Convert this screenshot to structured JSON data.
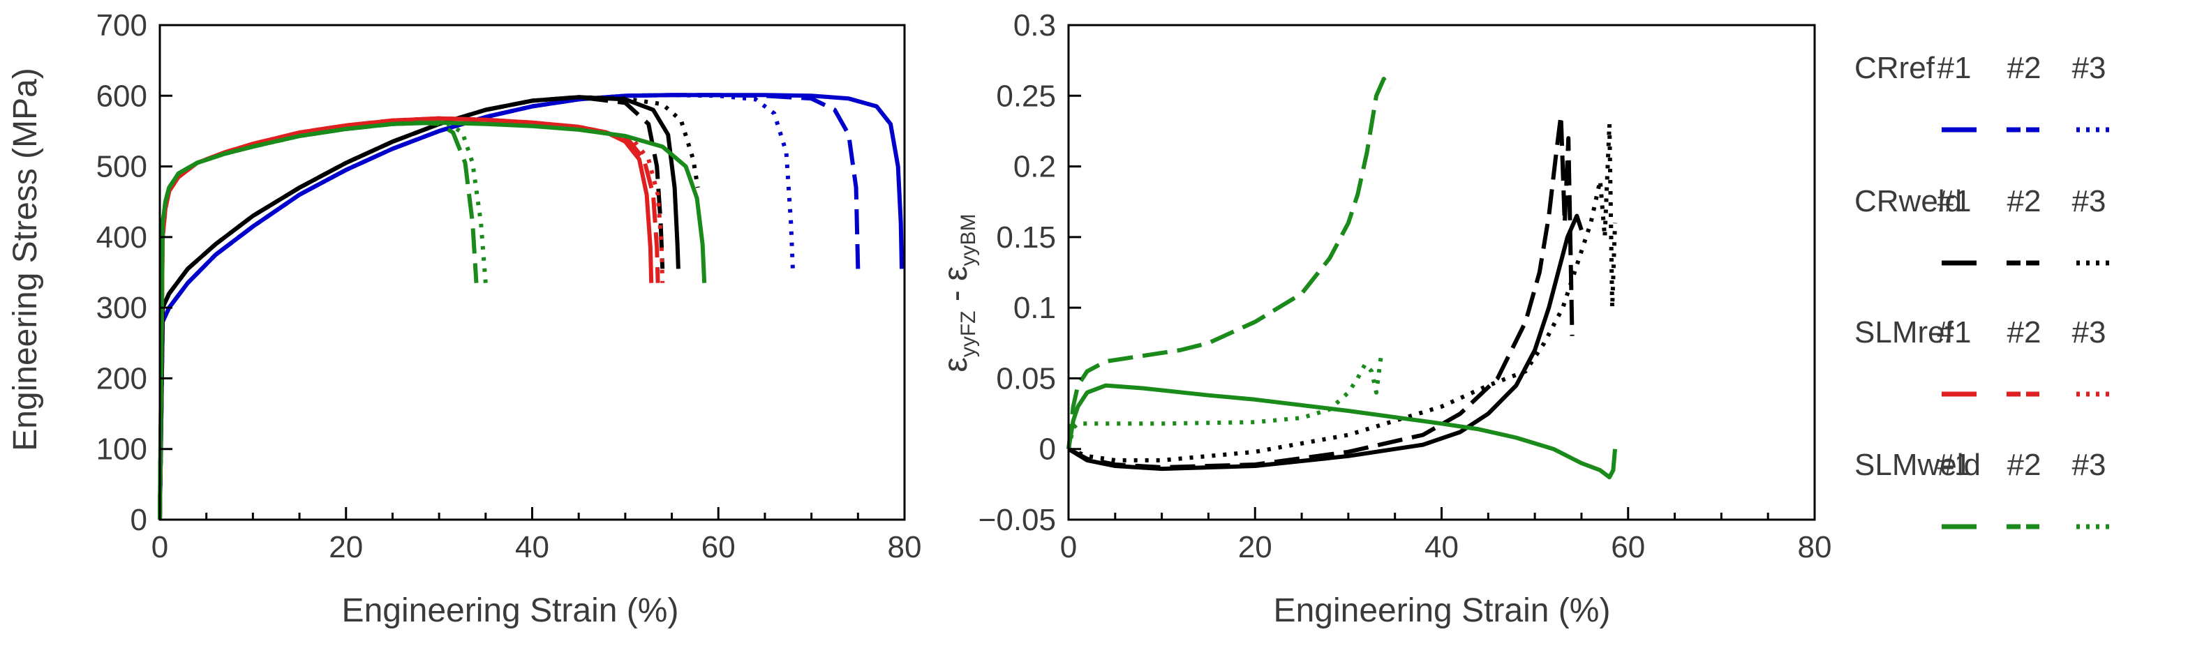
{
  "chart_data": [
    {
      "type": "line",
      "title": "",
      "xlabel": "Engineering Strain (%)",
      "ylabel": "Engineering Stress (MPa)",
      "xlim": [
        0,
        80
      ],
      "ylim": [
        0,
        700
      ],
      "xticks": [
        0,
        20,
        40,
        60,
        80
      ],
      "yticks": [
        0,
        100,
        200,
        300,
        400,
        500,
        600,
        700
      ],
      "grid": false,
      "series": [
        {
          "name": "CRref #1",
          "color": "#0000cc",
          "dash": "solid",
          "x": [
            0,
            0.3,
            1,
            3,
            6,
            10,
            15,
            20,
            25,
            30,
            35,
            40,
            45,
            50,
            55,
            60,
            65,
            70,
            74,
            77,
            78.5,
            79.3,
            79.6,
            79.7
          ],
          "y": [
            0,
            280,
            300,
            335,
            375,
            415,
            460,
            495,
            525,
            550,
            570,
            585,
            595,
            600,
            601,
            601,
            601,
            600,
            596,
            585,
            560,
            500,
            420,
            355
          ]
        },
        {
          "name": "CRref #2",
          "color": "#0000cc",
          "dash": "dash",
          "x": [
            0,
            0.3,
            1,
            3,
            6,
            10,
            15,
            20,
            25,
            30,
            35,
            40,
            45,
            50,
            55,
            60,
            65,
            70,
            72.5,
            74,
            74.8,
            75
          ],
          "y": [
            0,
            280,
            300,
            335,
            375,
            415,
            460,
            495,
            525,
            550,
            570,
            585,
            595,
            600,
            601,
            601,
            600,
            596,
            580,
            545,
            470,
            355
          ]
        },
        {
          "name": "CRref #3",
          "color": "#0000cc",
          "dash": "dot",
          "x": [
            0,
            0.3,
            1,
            3,
            6,
            10,
            15,
            20,
            25,
            30,
            35,
            40,
            45,
            50,
            55,
            60,
            64,
            66,
            67.3,
            67.8,
            68
          ],
          "y": [
            0,
            280,
            300,
            335,
            375,
            415,
            460,
            495,
            525,
            550,
            570,
            585,
            595,
            600,
            601,
            600,
            595,
            575,
            520,
            420,
            355
          ]
        },
        {
          "name": "CRweld #1",
          "color": "#000000",
          "dash": "solid",
          "x": [
            0,
            0.3,
            1,
            3,
            6,
            10,
            15,
            20,
            25,
            30,
            35,
            40,
            45,
            50,
            53,
            54.6,
            55.3,
            55.6,
            55.7
          ],
          "y": [
            0,
            300,
            320,
            355,
            390,
            430,
            470,
            505,
            535,
            560,
            580,
            593,
            598,
            595,
            580,
            545,
            470,
            390,
            355
          ]
        },
        {
          "name": "CRweld #2",
          "color": "#000000",
          "dash": "dash",
          "x": [
            0,
            0.3,
            1,
            3,
            6,
            10,
            15,
            20,
            25,
            30,
            35,
            40,
            45,
            50,
            52.5,
            53.4,
            53.8,
            54
          ],
          "y": [
            0,
            300,
            320,
            355,
            390,
            430,
            470,
            505,
            535,
            560,
            580,
            593,
            598,
            590,
            560,
            500,
            420,
            355
          ]
        },
        {
          "name": "CRweld #3",
          "color": "#000000",
          "dash": "dot",
          "x": [
            0,
            0.3,
            1,
            3,
            6,
            10,
            15,
            20,
            25,
            30,
            35,
            40,
            45,
            50,
            54,
            56,
            57.3,
            57.8
          ],
          "y": [
            0,
            300,
            320,
            355,
            390,
            430,
            470,
            505,
            535,
            560,
            580,
            593,
            598,
            596,
            588,
            565,
            510,
            470
          ]
        },
        {
          "name": "SLMref #1",
          "color": "#e02020",
          "dash": "solid",
          "x": [
            0,
            0.3,
            0.6,
            1,
            2,
            4,
            7,
            10,
            15,
            20,
            25,
            30,
            35,
            40,
            45,
            48,
            50,
            51.5,
            52.3,
            52.7,
            52.8
          ],
          "y": [
            0,
            400,
            440,
            465,
            485,
            505,
            520,
            532,
            548,
            558,
            565,
            568,
            566,
            562,
            556,
            548,
            535,
            510,
            460,
            385,
            335
          ]
        },
        {
          "name": "SLMref #2",
          "color": "#e02020",
          "dash": "dash",
          "x": [
            0,
            0.3,
            0.6,
            1,
            2,
            4,
            7,
            10,
            15,
            20,
            25,
            30,
            35,
            40,
            45,
            48,
            50.5,
            52,
            53,
            53.4,
            53.5
          ],
          "y": [
            0,
            400,
            440,
            465,
            485,
            505,
            520,
            532,
            548,
            558,
            565,
            568,
            566,
            562,
            556,
            548,
            535,
            510,
            460,
            385,
            335
          ]
        },
        {
          "name": "SLMref #3",
          "color": "#e02020",
          "dash": "dot",
          "x": [
            0,
            0.3,
            0.6,
            1,
            2,
            4,
            7,
            10,
            15,
            20,
            25,
            30,
            35,
            40,
            45,
            48,
            51,
            52.5,
            53.5,
            53.9,
            54
          ],
          "y": [
            0,
            400,
            440,
            465,
            485,
            505,
            520,
            532,
            548,
            558,
            565,
            568,
            566,
            562,
            556,
            548,
            535,
            510,
            460,
            385,
            335
          ]
        },
        {
          "name": "SLMweld #1",
          "color": "#1a8a1a",
          "dash": "solid",
          "x": [
            0,
            0.3,
            0.6,
            1,
            2,
            4,
            7,
            10,
            15,
            20,
            25,
            30,
            35,
            40,
            45,
            50,
            54,
            56.5,
            57.7,
            58.3,
            58.5
          ],
          "y": [
            0,
            420,
            450,
            470,
            490,
            505,
            518,
            528,
            543,
            553,
            560,
            562,
            560,
            557,
            552,
            543,
            528,
            500,
            455,
            390,
            335
          ]
        },
        {
          "name": "SLMweld #2",
          "color": "#1a8a1a",
          "dash": "dash",
          "x": [
            0,
            0.3,
            0.6,
            1,
            2,
            4,
            7,
            10,
            15,
            20,
            25,
            28,
            30,
            31.5,
            32.8,
            33.6,
            34
          ],
          "y": [
            0,
            420,
            450,
            470,
            490,
            505,
            518,
            528,
            543,
            553,
            560,
            562,
            560,
            548,
            505,
            420,
            335
          ]
        },
        {
          "name": "SLMweld #3",
          "color": "#1a8a1a",
          "dash": "dot",
          "x": [
            0,
            0.3,
            0.6,
            1,
            2,
            4,
            7,
            10,
            15,
            20,
            25,
            29,
            31,
            32.5,
            33.6,
            34.5,
            35
          ],
          "y": [
            0,
            420,
            450,
            470,
            490,
            505,
            518,
            528,
            543,
            553,
            560,
            562,
            560,
            548,
            505,
            420,
            335
          ]
        }
      ]
    },
    {
      "type": "line",
      "title": "",
      "xlabel": "Engineering Strain (%)",
      "ylabel_main": "ε",
      "ylabel_sub1": "yyFZ",
      "ylabel_mid": " - ε",
      "ylabel_sub2": "yyBM",
      "xlim": [
        0,
        80
      ],
      "ylim": [
        -0.05,
        0.3
      ],
      "xticks": [
        0,
        20,
        40,
        60,
        80
      ],
      "yticks": [
        -0.05,
        0,
        0.05,
        0.1,
        0.15,
        0.2,
        0.25,
        0.3
      ],
      "ytick_labels": [
        "−0.05",
        "0",
        "0.05",
        "0.1",
        "0.15",
        "0.2",
        "0.25",
        "0.3"
      ],
      "grid": false,
      "series": [
        {
          "name": "CRweld #1",
          "color": "#000000",
          "dash": "solid",
          "x": [
            0,
            2,
            5,
            10,
            20,
            30,
            38,
            42,
            45,
            48,
            50,
            51.5,
            52.5,
            53.5,
            54.5,
            55
          ],
          "y": [
            0,
            -0.008,
            -0.012,
            -0.014,
            -0.012,
            -0.005,
            0.003,
            0.012,
            0.025,
            0.045,
            0.07,
            0.1,
            0.125,
            0.15,
            0.165,
            0.155
          ]
        },
        {
          "name": "CRweld #2",
          "color": "#000000",
          "dash": "dash",
          "x": [
            0,
            2,
            5,
            10,
            20,
            30,
            38,
            42,
            46,
            49,
            50.5,
            51.5,
            52.3,
            52.8,
            53.2,
            53.6,
            54
          ],
          "y": [
            0,
            -0.007,
            -0.011,
            -0.013,
            -0.011,
            -0.002,
            0.01,
            0.025,
            0.05,
            0.09,
            0.125,
            0.165,
            0.21,
            0.236,
            0.16,
            0.22,
            0.08
          ]
        },
        {
          "name": "CRweld #3",
          "color": "#000000",
          "dash": "dot",
          "x": [
            0,
            2,
            5,
            10,
            20,
            30,
            40,
            45,
            49,
            51,
            53,
            54,
            55,
            56,
            57,
            57.5,
            58,
            58.3,
            58.6
          ],
          "y": [
            0,
            -0.005,
            -0.008,
            -0.008,
            -0.002,
            0.01,
            0.03,
            0.045,
            0.055,
            0.075,
            0.1,
            0.12,
            0.14,
            0.16,
            0.19,
            0.15,
            0.23,
            0.1,
            0.16
          ]
        },
        {
          "name": "SLMweld #1",
          "color": "#1a8a1a",
          "dash": "solid",
          "x": [
            0,
            0.5,
            1,
            2,
            4,
            8,
            15,
            20,
            30,
            40,
            44,
            48,
            52,
            55,
            57,
            58,
            58.4,
            58.6
          ],
          "y": [
            0,
            0.02,
            0.03,
            0.04,
            0.045,
            0.043,
            0.038,
            0.035,
            0.027,
            0.018,
            0.014,
            0.008,
            0,
            -0.01,
            -0.015,
            -0.02,
            -0.015,
            0
          ]
        },
        {
          "name": "SLMweld #2",
          "color": "#1a8a1a",
          "dash": "dash",
          "x": [
            0,
            0.5,
            1,
            2,
            4,
            8,
            12,
            15,
            20,
            25,
            28,
            30,
            31,
            32,
            33,
            33.8,
            34.5
          ],
          "y": [
            0,
            0.03,
            0.045,
            0.055,
            0.062,
            0.066,
            0.07,
            0.075,
            0.09,
            0.11,
            0.135,
            0.16,
            0.18,
            0.21,
            0.25,
            0.262,
            0.255
          ]
        },
        {
          "name": "SLMweld #3",
          "color": "#1a8a1a",
          "dash": "dot",
          "x": [
            0,
            0.5,
            1,
            3,
            10,
            20,
            25,
            28,
            30,
            31,
            31.8,
            32.5,
            33,
            33.5,
            34
          ],
          "y": [
            0,
            0.015,
            0.018,
            0.018,
            0.018,
            0.019,
            0.022,
            0.028,
            0.04,
            0.05,
            0.06,
            0.055,
            0.04,
            0.065,
            0.065
          ]
        }
      ]
    }
  ],
  "legend": {
    "placement": "right",
    "groups": [
      {
        "label": "CRref",
        "color": "#0000cc",
        "numbers": [
          "#1",
          "#2",
          "#3"
        ]
      },
      {
        "label": "CRweld",
        "color": "#000000",
        "numbers": [
          "#1",
          "#2",
          "#3"
        ]
      },
      {
        "label": "SLMref",
        "color": "#e02020",
        "numbers": [
          "#1",
          "#2",
          "#3"
        ]
      },
      {
        "label": "SLMweld",
        "color": "#1a8a1a",
        "numbers": [
          "#1",
          "#2",
          "#3"
        ]
      }
    ]
  }
}
